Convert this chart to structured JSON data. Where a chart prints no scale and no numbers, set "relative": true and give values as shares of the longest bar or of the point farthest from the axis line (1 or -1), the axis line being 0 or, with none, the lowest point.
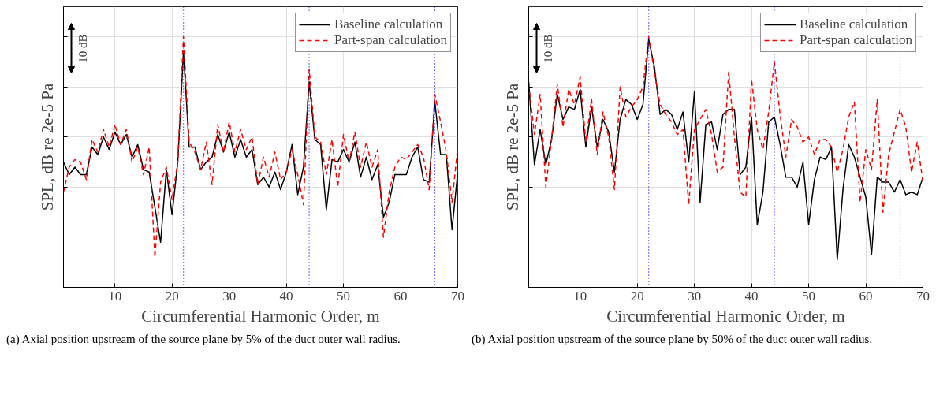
{
  "chart_data": [
    {
      "type": "line",
      "relative": true,
      "xlabel": "Circumferential Harmonic Order, m",
      "ylabel": "SPL, dB re 2e-5 Pa",
      "xlim": [
        1,
        70
      ],
      "xticks": [
        10,
        20,
        30,
        40,
        50,
        60,
        70
      ],
      "grid": true,
      "legend": "top right",
      "tick_labels": "x",
      "x": [
        1,
        2,
        3,
        4,
        5,
        6,
        7,
        8,
        9,
        10,
        11,
        12,
        13,
        14,
        15,
        16,
        17,
        18,
        19,
        20,
        21,
        22,
        23,
        24,
        25,
        26,
        27,
        28,
        29,
        30,
        31,
        32,
        33,
        34,
        35,
        36,
        37,
        38,
        39,
        40,
        41,
        42,
        43,
        44,
        45,
        46,
        47,
        48,
        49,
        50,
        51,
        52,
        53,
        54,
        55,
        56,
        57,
        58,
        59,
        60,
        61,
        62,
        63,
        64,
        65,
        66,
        67,
        68,
        69,
        70
      ],
      "series": [
        {
          "name": "Baseline calculation",
          "color": "#000000",
          "line_style": "solid",
          "values": [
            0.5,
            0.45,
            0.48,
            0.45,
            0.45,
            0.56,
            0.53,
            0.6,
            0.55,
            0.62,
            0.57,
            0.61,
            0.52,
            0.57,
            0.47,
            0.46,
            0.32,
            0.18,
            0.47,
            0.29,
            0.5,
            0.94,
            0.56,
            0.56,
            0.47,
            0.5,
            0.52,
            0.61,
            0.54,
            0.62,
            0.52,
            0.59,
            0.52,
            0.55,
            0.41,
            0.44,
            0.4,
            0.46,
            0.39,
            0.46,
            0.57,
            0.37,
            0.48,
            0.82,
            0.59,
            0.57,
            0.31,
            0.51,
            0.5,
            0.55,
            0.5,
            0.58,
            0.44,
            0.52,
            0.43,
            0.49,
            0.28,
            0.34,
            0.45,
            0.45,
            0.45,
            0.52,
            0.56,
            0.43,
            0.42,
            0.74,
            0.53,
            0.53,
            0.23,
            0.46
          ]
        },
        {
          "name": "Part-span calculation",
          "color": "#ff0000",
          "line_style": "dashed",
          "values": [
            0.38,
            0.48,
            0.51,
            0.5,
            0.43,
            0.59,
            0.54,
            0.63,
            0.56,
            0.65,
            0.57,
            0.63,
            0.5,
            0.56,
            0.45,
            0.56,
            0.12,
            0.42,
            0.48,
            0.35,
            0.5,
            1,
            0.58,
            0.54,
            0.47,
            0.58,
            0.41,
            0.65,
            0.54,
            0.66,
            0.54,
            0.63,
            0.55,
            0.6,
            0.41,
            0.52,
            0.44,
            0.54,
            0.43,
            0.46,
            0.55,
            0.45,
            0.33,
            0.87,
            0.6,
            0.58,
            0.45,
            0.59,
            0.4,
            0.61,
            0.5,
            0.62,
            0.48,
            0.58,
            0.48,
            0.55,
            0.2,
            0.38,
            0.48,
            0.52,
            0.51,
            0.54,
            0.57,
            0.52,
            0.39,
            0.77,
            0.66,
            0.54,
            0.34,
            0.56
          ]
        }
      ],
      "ref_lines": [
        {
          "axis": "x",
          "value": 22,
          "color": "#0000ff",
          "line_style": "dotted"
        },
        {
          "axis": "x",
          "value": 44,
          "color": "#0000ff",
          "line_style": "dotted"
        },
        {
          "axis": "x",
          "value": 66,
          "color": "#0000ff",
          "line_style": "dotted"
        }
      ],
      "annotations": [
        "10 dB",
        "(a)  Axial position upstream of the source plane by 5% of the duct outer wall radius."
      ]
    },
    {
      "type": "line",
      "relative": true,
      "xlabel": "Circumferential Harmonic Order, m",
      "ylabel": "SPL, dB re 2e-5 Pa",
      "xlim": [
        1,
        70
      ],
      "xticks": [
        10,
        20,
        30,
        40,
        50,
        60,
        70
      ],
      "grid": true,
      "legend": "top right",
      "tick_labels": "x",
      "x": [
        1,
        2,
        3,
        4,
        5,
        6,
        7,
        8,
        9,
        10,
        11,
        12,
        13,
        14,
        15,
        16,
        17,
        18,
        19,
        20,
        21,
        22,
        23,
        24,
        25,
        26,
        27,
        28,
        29,
        30,
        31,
        32,
        33,
        34,
        35,
        36,
        37,
        38,
        39,
        40,
        41,
        42,
        43,
        44,
        45,
        46,
        47,
        48,
        49,
        50,
        51,
        52,
        53,
        54,
        55,
        56,
        57,
        58,
        59,
        60,
        61,
        62,
        63,
        64,
        65,
        66,
        67,
        68,
        69,
        70
      ],
      "series": [
        {
          "name": "Baseline calculation",
          "color": "#000000",
          "line_style": "solid",
          "values": [
            0.82,
            0.49,
            0.63,
            0.49,
            0.59,
            0.77,
            0.67,
            0.72,
            0.71,
            0.79,
            0.56,
            0.72,
            0.56,
            0.67,
            0.62,
            0.46,
            0.67,
            0.75,
            0.73,
            0.67,
            0.73,
            0.99,
            0.88,
            0.69,
            0.71,
            0.69,
            0.63,
            0.7,
            0.5,
            0.78,
            0.34,
            0.65,
            0.66,
            0.55,
            0.69,
            0.71,
            0.71,
            0.45,
            0.48,
            0.68,
            0.25,
            0.38,
            0.66,
            0.68,
            0.57,
            0.44,
            0.44,
            0.4,
            0.5,
            0.25,
            0.43,
            0.52,
            0.51,
            0.56,
            0.11,
            0.39,
            0.57,
            0.52,
            0.44,
            0.36,
            0.13,
            0.44,
            0.42,
            0.42,
            0.38,
            0.43,
            0.37,
            0.38,
            0.37,
            0.44
          ]
        },
        {
          "name": "Part-span calculation",
          "color": "#ff0000",
          "line_style": "dashed",
          "values": [
            0.81,
            0.61,
            0.77,
            0.4,
            0.59,
            0.81,
            0.64,
            0.79,
            0.73,
            0.84,
            0.58,
            0.75,
            0.53,
            0.7,
            0.6,
            0.39,
            0.8,
            0.68,
            0.72,
            0.75,
            0.8,
            1,
            0.86,
            0.73,
            0.69,
            0.66,
            0.61,
            0.63,
            0.33,
            0.63,
            0.67,
            0.71,
            0.61,
            0.46,
            0.48,
            0.86,
            0.6,
            0.38,
            0.36,
            0.83,
            0.63,
            0.55,
            0.7,
            0.9,
            0.69,
            0.52,
            0.67,
            0.64,
            0.58,
            0.6,
            0.53,
            0.59,
            0.59,
            0.56,
            0.46,
            0.55,
            0.68,
            0.74,
            0.34,
            0.55,
            0.47,
            0.75,
            0.3,
            0.53,
            0.62,
            0.71,
            0.64,
            0.46,
            0.58,
            0.42
          ]
        }
      ],
      "ref_lines": [
        {
          "axis": "x",
          "value": 22,
          "color": "#0000ff",
          "line_style": "dotted"
        },
        {
          "axis": "x",
          "value": 44,
          "color": "#0000ff",
          "line_style": "dotted"
        },
        {
          "axis": "x",
          "value": 66,
          "color": "#0000ff",
          "line_style": "dotted"
        }
      ],
      "annotations": [
        "10 dB",
        "(b)  Axial position upstream of the source plane by 50% of the duct outer wall radius."
      ]
    }
  ]
}
